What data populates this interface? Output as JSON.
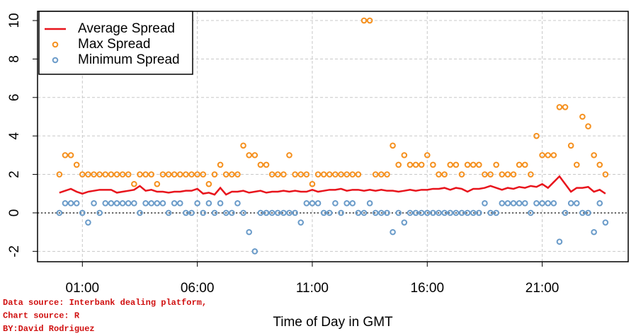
{
  "chart_data": {
    "type": "line_points",
    "x_label": "Time of Day in GMT",
    "annotations": [
      "Data source: Interbank dealing platform,",
      "Chart source: R",
      "BY:David Rodriguez"
    ],
    "x": [
      0,
      0.25,
      0.5,
      0.75,
      1,
      1.25,
      1.5,
      1.75,
      2,
      2.25,
      2.5,
      2.75,
      3,
      3.25,
      3.5,
      3.75,
      4,
      4.25,
      4.5,
      4.75,
      5,
      5.25,
      5.5,
      5.75,
      6,
      6.25,
      6.5,
      6.75,
      7,
      7.25,
      7.5,
      7.75,
      8,
      8.25,
      8.5,
      8.75,
      9,
      9.25,
      9.5,
      9.75,
      10,
      10.25,
      10.5,
      10.75,
      11,
      11.25,
      11.5,
      11.75,
      12,
      12.25,
      12.5,
      12.75,
      13,
      13.25,
      13.5,
      13.75,
      14,
      14.25,
      14.5,
      14.75,
      15,
      15.25,
      15.5,
      15.75,
      16,
      16.25,
      16.5,
      16.75,
      17,
      17.25,
      17.5,
      17.75,
      18,
      18.25,
      18.5,
      18.75,
      19,
      19.25,
      19.5,
      19.75,
      20,
      20.25,
      20.5,
      20.75,
      21,
      21.25,
      21.5,
      21.75,
      22,
      22.25,
      22.5,
      22.75,
      23,
      23.25,
      23.5,
      23.75
    ],
    "series": [
      {
        "name": "Average Spread",
        "color": "#e8141c",
        "style": "line",
        "values": [
          1.05,
          1.15,
          1.25,
          1.1,
          1.0,
          1.1,
          1.15,
          1.2,
          1.2,
          1.2,
          1.05,
          1.1,
          1.15,
          1.2,
          1.4,
          1.15,
          1.2,
          1.1,
          1.1,
          1.05,
          1.1,
          1.1,
          1.15,
          1.15,
          1.25,
          1.0,
          1.05,
          0.95,
          1.3,
          0.95,
          1.1,
          1.1,
          1.15,
          1.05,
          1.1,
          1.15,
          1.05,
          1.1,
          1.1,
          1.15,
          1.1,
          1.15,
          1.1,
          1.1,
          1.2,
          1.1,
          1.15,
          1.2,
          1.2,
          1.25,
          1.15,
          1.2,
          1.2,
          1.15,
          1.2,
          1.15,
          1.2,
          1.15,
          1.15,
          1.1,
          1.15,
          1.2,
          1.15,
          1.2,
          1.2,
          1.25,
          1.25,
          1.3,
          1.2,
          1.3,
          1.25,
          1.1,
          1.25,
          1.25,
          1.3,
          1.4,
          1.3,
          1.2,
          1.3,
          1.25,
          1.35,
          1.3,
          1.4,
          1.35,
          1.5,
          1.3,
          1.6,
          1.9,
          1.5,
          1.1,
          1.3,
          1.3,
          1.35,
          1.1,
          1.2,
          1.0
        ]
      },
      {
        "name": "Max Spread",
        "color": "#f5901e",
        "style": "points",
        "values": [
          2,
          3,
          3,
          2.5,
          2,
          2,
          2,
          2,
          2,
          2,
          2,
          2,
          2,
          1.5,
          2,
          2,
          2,
          1.5,
          2,
          2,
          2,
          2,
          2,
          2,
          2,
          2,
          1.5,
          2,
          2.5,
          2,
          2,
          2,
          3.5,
          3,
          3,
          2.5,
          2.5,
          2,
          2,
          2,
          3,
          2,
          2,
          2,
          1.5,
          2,
          2,
          2,
          2,
          2,
          2,
          2,
          2,
          10,
          10,
          2,
          2,
          2,
          3.5,
          2.5,
          3,
          2.5,
          2.5,
          2.5,
          3,
          2.5,
          2,
          2,
          2.5,
          2.5,
          2,
          2.5,
          2.5,
          2.5,
          2,
          2,
          2.5,
          2,
          2,
          2,
          2.5,
          2.5,
          2,
          4,
          3,
          3,
          3,
          5.5,
          5.5,
          3.5,
          2.5,
          5,
          4.5,
          3,
          2.5,
          2
        ]
      },
      {
        "name": "Minimum Spread",
        "color": "#6a9bc9",
        "style": "points",
        "values": [
          0,
          0.5,
          0.5,
          0.5,
          0,
          -0.5,
          0.5,
          0,
          0.5,
          0.5,
          0.5,
          0.5,
          0.5,
          0.5,
          0,
          0.5,
          0.5,
          0.5,
          0.5,
          0,
          0.5,
          0.5,
          0,
          0,
          0.5,
          0,
          0.5,
          0,
          0.5,
          0,
          0,
          0.5,
          0,
          -1,
          -2,
          0,
          0,
          0,
          0,
          0,
          0,
          0,
          -0.5,
          0.5,
          0.5,
          0.5,
          0,
          0,
          0.5,
          0,
          0.5,
          0.5,
          0,
          0,
          0.5,
          0,
          0,
          0,
          -1,
          0,
          -0.5,
          0,
          0,
          0,
          0,
          0,
          0,
          0,
          0,
          0,
          0,
          0,
          0,
          0,
          0.5,
          0,
          0,
          0.5,
          0.5,
          0.5,
          0.5,
          0.5,
          0,
          0.5,
          0.5,
          0.5,
          0.5,
          -1.5,
          0,
          0.5,
          0.5,
          0,
          0,
          -1,
          0.5,
          -0.5
        ]
      }
    ],
    "xlim": [
      -0.95,
      24.74
    ],
    "xticks": [
      {
        "value": 1,
        "label": "01:00"
      },
      {
        "value": 6,
        "label": "06:00"
      },
      {
        "value": 11,
        "label": "11:00"
      },
      {
        "value": 16,
        "label": "16:00"
      },
      {
        "value": 21,
        "label": "21:00"
      }
    ],
    "ylim": [
      -2.54,
      10.48
    ],
    "yticks": [
      -2,
      0,
      2,
      4,
      6,
      8,
      10
    ],
    "hline": 0,
    "grid": true,
    "legend": "top-left"
  }
}
